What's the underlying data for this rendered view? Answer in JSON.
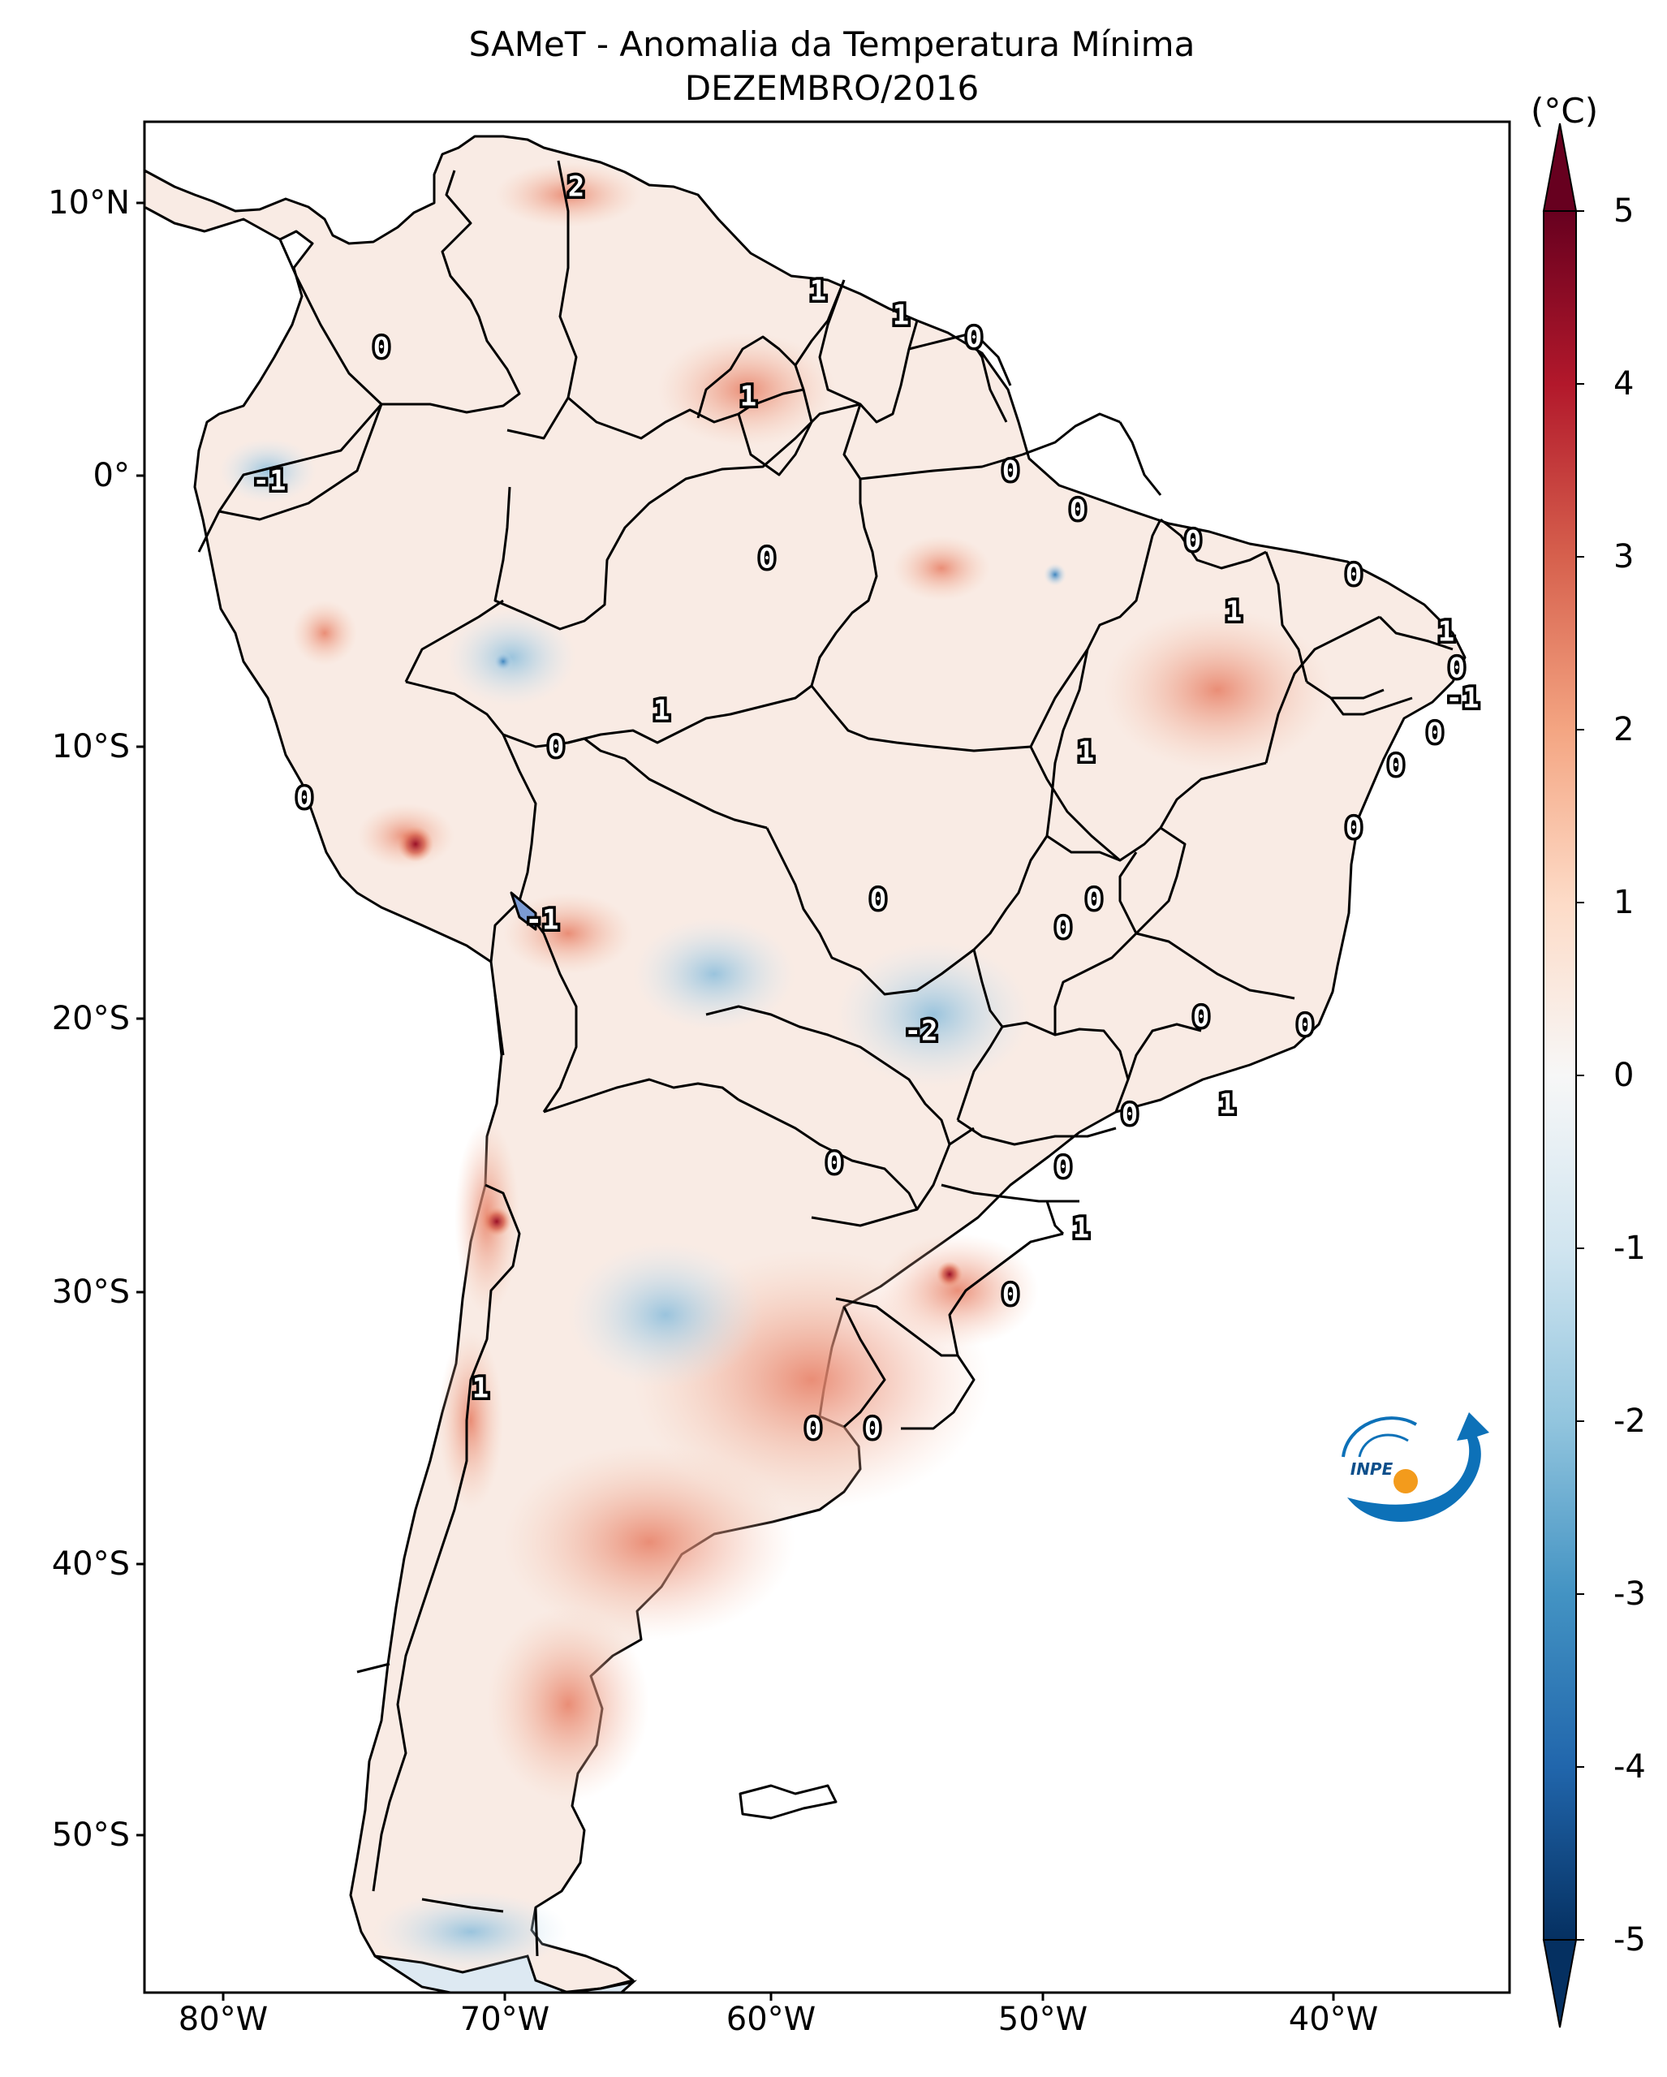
{
  "title": "SAMeT - Anomalia da Temperatura Mínima",
  "subtitle": "DEZEMBRO/2016",
  "colorbar": {
    "unit": "(°C)",
    "ticks": [
      "5",
      "4",
      "3",
      "2",
      "1",
      "0",
      "-1",
      "-2",
      "-3",
      "-4",
      "-5"
    ],
    "colors_top_to_bottom": [
      "#67001f",
      "#b2182b",
      "#d6604d",
      "#f4a582",
      "#fddbc7",
      "#f7f7f7",
      "#d1e5f0",
      "#92c5de",
      "#4393c3",
      "#2166ac",
      "#053061"
    ]
  },
  "axes": {
    "lat_labels": [
      "10°N",
      "0°",
      "10°S",
      "20°S",
      "30°S",
      "40°S",
      "50°S"
    ],
    "lon_labels": [
      "80°W",
      "70°W",
      "60°W",
      "50°W",
      "40°W"
    ]
  },
  "contour_labels": [
    {
      "text": "2"
    },
    {
      "text": "1"
    },
    {
      "text": "1"
    },
    {
      "text": "0"
    },
    {
      "text": "0"
    },
    {
      "text": "1"
    },
    {
      "text": "-1"
    },
    {
      "text": "0"
    },
    {
      "text": "0"
    },
    {
      "text": "0"
    },
    {
      "text": "0"
    },
    {
      "text": "1"
    },
    {
      "text": "0"
    },
    {
      "text": "1"
    },
    {
      "text": "0"
    },
    {
      "text": "-1"
    },
    {
      "text": "0"
    },
    {
      "text": "0"
    },
    {
      "text": "0"
    },
    {
      "text": "1"
    },
    {
      "text": "1"
    },
    {
      "text": "0"
    },
    {
      "text": "0"
    },
    {
      "text": "0"
    },
    {
      "text": "0"
    },
    {
      "text": "-1"
    },
    {
      "text": "-2"
    },
    {
      "text": "0"
    },
    {
      "text": "0"
    },
    {
      "text": "0"
    },
    {
      "text": "1"
    },
    {
      "text": "0"
    },
    {
      "text": "0"
    },
    {
      "text": "0"
    },
    {
      "text": "1"
    },
    {
      "text": "0"
    },
    {
      "text": "1"
    },
    {
      "text": "0"
    },
    {
      "text": "0"
    }
  ],
  "logo": "INPE"
}
